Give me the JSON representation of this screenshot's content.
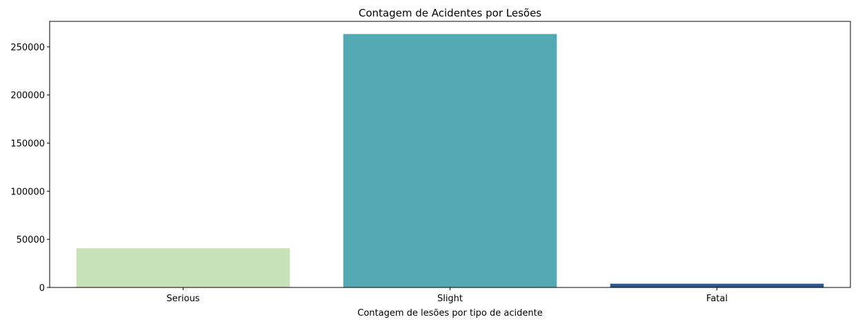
{
  "chart_data": {
    "type": "bar",
    "title": "Contagem de Acidentes por Lesões",
    "xlabel": "Contagem de lesões por tipo de acidente",
    "ylabel": "",
    "categories": [
      "Serious",
      "Slight",
      "Fatal"
    ],
    "values": [
      40740,
      263280,
      3900
    ],
    "colors": [
      "#c9e3b9",
      "#52a9b4",
      "#2a5893"
    ],
    "ylim": [
      0,
      276444
    ],
    "yticks": [
      0,
      50000,
      100000,
      150000,
      200000,
      250000
    ],
    "ytick_labels": [
      "0",
      "50000",
      "100000",
      "150000",
      "200000",
      "250000"
    ],
    "grid": false,
    "legend": false
  }
}
